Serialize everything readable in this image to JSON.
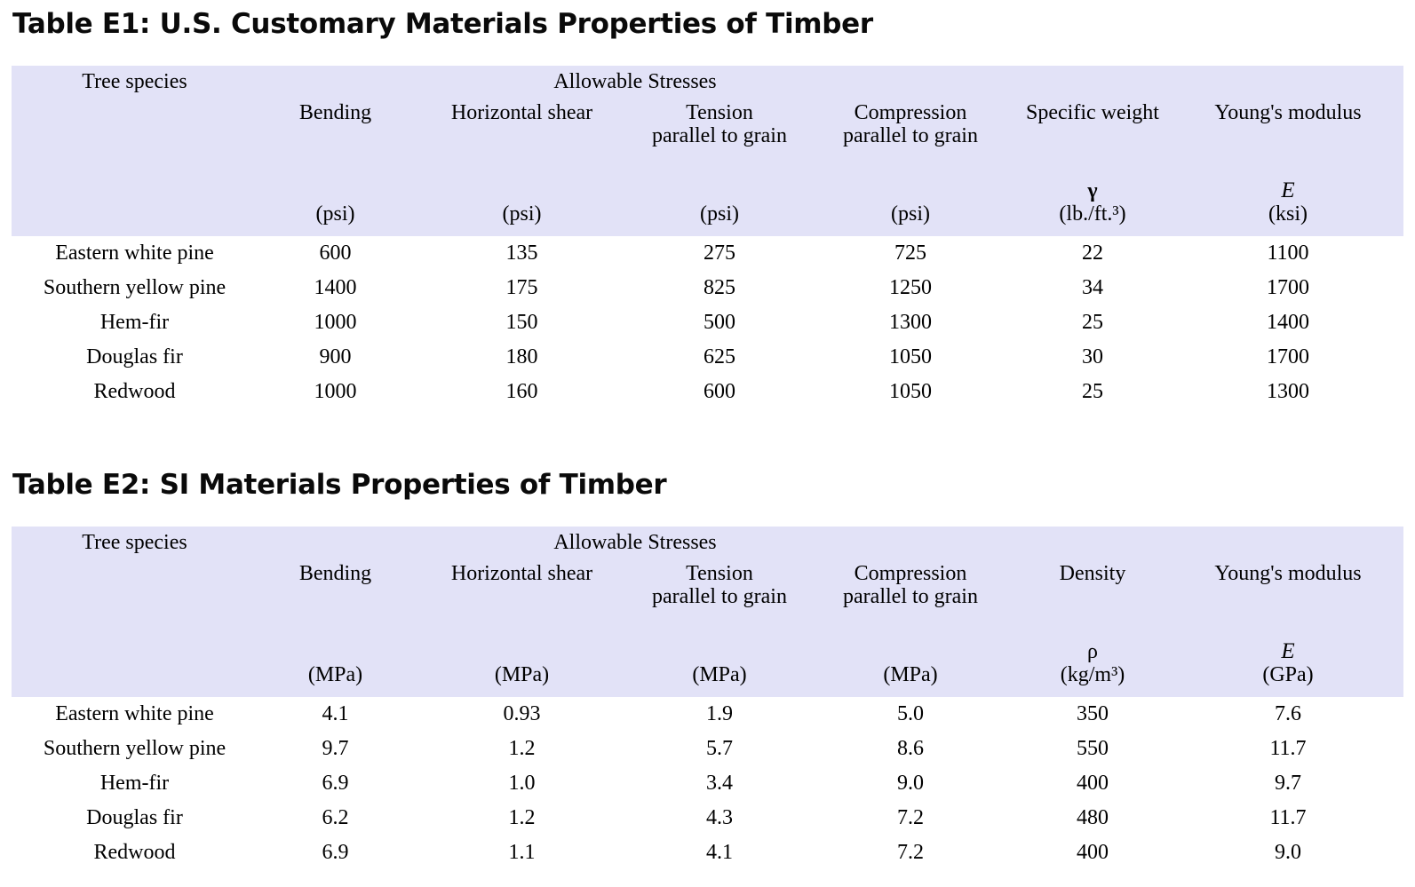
{
  "colors": {
    "header_bg": "#e2e2f7",
    "page_bg": "#ffffff",
    "text": "#000000"
  },
  "tables": [
    {
      "title": "Table E1: U.S. Customary Materials Properties of Timber",
      "species_header": "Tree species",
      "group_label": "Allowable Stresses",
      "columns": [
        {
          "label": "Bending",
          "sub": "",
          "symbol": "",
          "symbol_style": "",
          "unit": "(psi)"
        },
        {
          "label": "Horizontal shear",
          "sub": "",
          "symbol": "",
          "symbol_style": "",
          "unit": "(psi)"
        },
        {
          "label": "Tension",
          "sub": "parallel to grain",
          "symbol": "",
          "symbol_style": "",
          "unit": "(psi)"
        },
        {
          "label": "Compression",
          "sub": "parallel to grain",
          "symbol": "",
          "symbol_style": "",
          "unit": "(psi)"
        },
        {
          "label": "Specific weight",
          "sub": "",
          "symbol": "γ",
          "symbol_style": "bold",
          "unit": "(lb./ft.³)"
        },
        {
          "label": "Young's modulus",
          "sub": "",
          "symbol": "E",
          "symbol_style": "italic",
          "unit": "(ksi)"
        }
      ],
      "rows": [
        {
          "species": "Eastern white pine",
          "values": [
            "600",
            "135",
            "275",
            "725",
            "22",
            "1100"
          ]
        },
        {
          "species": "Southern yellow pine",
          "values": [
            "1400",
            "175",
            "825",
            "1250",
            "34",
            "1700"
          ]
        },
        {
          "species": "Hem-fir",
          "values": [
            "1000",
            "150",
            "500",
            "1300",
            "25",
            "1400"
          ]
        },
        {
          "species": "Douglas fir",
          "values": [
            "900",
            "180",
            "625",
            "1050",
            "30",
            "1700"
          ]
        },
        {
          "species": "Redwood",
          "values": [
            "1000",
            "160",
            "600",
            "1050",
            "25",
            "1300"
          ]
        }
      ]
    },
    {
      "title": "Table E2: SI Materials Properties of Timber",
      "species_header": "Tree species",
      "group_label": "Allowable Stresses",
      "columns": [
        {
          "label": "Bending",
          "sub": "",
          "symbol": "",
          "symbol_style": "",
          "unit": "(MPa)"
        },
        {
          "label": "Horizontal shear",
          "sub": "",
          "symbol": "",
          "symbol_style": "",
          "unit": "(MPa)"
        },
        {
          "label": "Tension",
          "sub": "parallel to grain",
          "symbol": "",
          "symbol_style": "",
          "unit": "(MPa)"
        },
        {
          "label": "Compression",
          "sub": "parallel to grain",
          "symbol": "",
          "symbol_style": "",
          "unit": "(MPa)"
        },
        {
          "label": "Density",
          "sub": "",
          "symbol": "ρ",
          "symbol_style": "",
          "unit": "(kg/m³)"
        },
        {
          "label": "Young's modulus",
          "sub": "",
          "symbol": "E",
          "symbol_style": "italic",
          "unit": "(GPa)"
        }
      ],
      "rows": [
        {
          "species": "Eastern white pine",
          "values": [
            "4.1",
            "0.93",
            "1.9",
            "5.0",
            "350",
            "7.6"
          ]
        },
        {
          "species": "Southern yellow pine",
          "values": [
            "9.7",
            "1.2",
            "5.7",
            "8.6",
            "550",
            "11.7"
          ]
        },
        {
          "species": "Hem-fir",
          "values": [
            "6.9",
            "1.0",
            "3.4",
            "9.0",
            "400",
            "9.7"
          ]
        },
        {
          "species": "Douglas fir",
          "values": [
            "6.2",
            "1.2",
            "4.3",
            "7.2",
            "480",
            "11.7"
          ]
        },
        {
          "species": "Redwood",
          "values": [
            "6.9",
            "1.1",
            "4.1",
            "7.2",
            "400",
            "9.0"
          ]
        }
      ]
    }
  ]
}
